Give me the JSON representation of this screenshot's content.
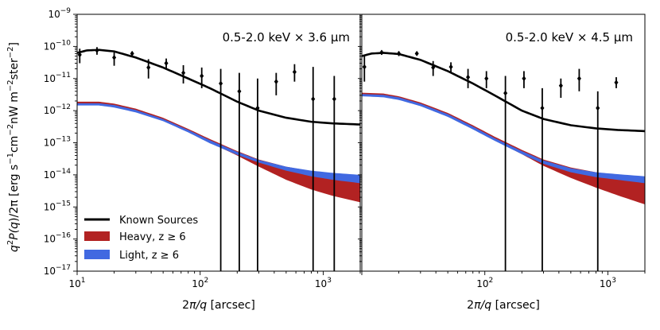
{
  "chart_data": {
    "type": "line",
    "ylabel": "q^2P(q)/2π [erg s^-1 cm^-2 nW m^-2 ster^-2]",
    "xlabel": "2π/q [arcsec]",
    "xscale": "log",
    "yscale": "log",
    "xlim": [
      10,
      2000
    ],
    "ylim": [
      1e-17,
      1e-09
    ],
    "x_ticks": [
      {
        "value": 10,
        "base": "10",
        "exp": "1"
      },
      {
        "value": 100,
        "base": "10",
        "exp": "2"
      },
      {
        "value": 1000,
        "base": "10",
        "exp": "3"
      }
    ],
    "y_ticks": [
      {
        "value": 1e-17,
        "base": "10",
        "exp": "−17"
      },
      {
        "value": 1e-16,
        "base": "10",
        "exp": "−16"
      },
      {
        "value": 1e-15,
        "base": "10",
        "exp": "−15"
      },
      {
        "value": 1e-14,
        "base": "10",
        "exp": "−14"
      },
      {
        "value": 1e-13,
        "base": "10",
        "exp": "−13"
      },
      {
        "value": 1e-12,
        "base": "10",
        "exp": "−12"
      },
      {
        "value": 1e-11,
        "base": "10",
        "exp": "−11"
      },
      {
        "value": 1e-10,
        "base": "10",
        "exp": "−10"
      },
      {
        "value": 1e-09,
        "base": "10",
        "exp": "−9"
      }
    ],
    "legend": {
      "placement": "lower-left",
      "entries": [
        {
          "label": "Known Sources",
          "kind": "line",
          "color": "#000000"
        },
        {
          "label": "Heavy, z ≥ 6",
          "kind": "patch",
          "color": "#b22222"
        },
        {
          "label": "Light, z ≥ 6",
          "kind": "patch",
          "color": "#4169e1"
        }
      ]
    },
    "panels": [
      {
        "title": "0.5-2.0 keV × 3.6 μm",
        "known_sources": {
          "x": [
            10,
            12,
            15,
            20,
            30,
            50,
            80,
            120,
            200,
            300,
            500,
            800,
            1200,
            2000
          ],
          "y": [
            6.3e-11,
            7.5e-11,
            7.8e-11,
            7e-11,
            4.5e-11,
            2.2e-11,
            1e-11,
            5e-12,
            1.9e-12,
            1e-12,
            6e-13,
            4.5e-13,
            4e-13,
            3.7e-13
          ]
        },
        "heavy": {
          "x": [
            10,
            15,
            20,
            30,
            50,
            80,
            120,
            200,
            300,
            500,
            800,
            1200,
            2000
          ],
          "upper": [
            1.9e-12,
            1.9e-12,
            1.65e-12,
            1.15e-12,
            6e-13,
            2.7e-13,
            1.3e-13,
            5.5e-14,
            3e-14,
            1.8e-14,
            1.3e-14,
            1.05e-14,
            8.5e-15
          ],
          "lower": [
            1.55e-12,
            1.55e-12,
            1.35e-12,
            9.5e-13,
            5e-13,
            2.2e-13,
            1e-13,
            4e-14,
            1.8e-14,
            7e-15,
            3.5e-15,
            2.2e-15,
            1.4e-15
          ]
        },
        "light": {
          "x": [
            10,
            15,
            20,
            30,
            50,
            80,
            120,
            200,
            300,
            500,
            800,
            1200,
            2000
          ],
          "upper": [
            1.7e-12,
            1.7e-12,
            1.5e-12,
            1.05e-12,
            5.5e-13,
            2.5e-13,
            1.2e-13,
            5.2e-14,
            2.9e-14,
            1.8e-14,
            1.35e-14,
            1.15e-14,
            1e-14
          ],
          "lower": [
            1.45e-12,
            1.45e-12,
            1.25e-12,
            8.8e-13,
            4.7e-13,
            2.1e-13,
            9.6e-14,
            4.2e-14,
            2.4e-14,
            1.35e-14,
            9e-15,
            7e-15,
            5.5e-15
          ]
        },
        "data_points": [
          {
            "x": 10.5,
            "y": 5.5e-11,
            "lo": 3e-11,
            "hi": 8.5e-11
          },
          {
            "x": 14.5,
            "y": 7.5e-11,
            "lo": 5.5e-11,
            "hi": 9.5e-11
          },
          {
            "x": 20,
            "y": 4.5e-11,
            "lo": 2.5e-11,
            "hi": 6.5e-11
          },
          {
            "x": 28,
            "y": 6e-11,
            "lo": 5e-11,
            "hi": 7e-11
          },
          {
            "x": 38,
            "y": 2.2e-11,
            "lo": 1e-11,
            "hi": 4e-11
          },
          {
            "x": 53,
            "y": 3e-11,
            "lo": 2e-11,
            "hi": 4.2e-11
          },
          {
            "x": 73,
            "y": 1.5e-11,
            "lo": 7e-12,
            "hi": 2.6e-11
          },
          {
            "x": 103,
            "y": 1.2e-11,
            "lo": 5e-12,
            "hi": 2.2e-11
          },
          {
            "x": 147,
            "y": 7e-12,
            "lo": 1e-17,
            "hi": 2e-11
          },
          {
            "x": 208,
            "y": 4e-12,
            "lo": 1e-17,
            "hi": 1.5e-11
          },
          {
            "x": 293,
            "y": 1.2e-12,
            "lo": 1e-17,
            "hi": 1e-11
          },
          {
            "x": 415,
            "y": 8e-12,
            "lo": 3e-12,
            "hi": 1.5e-11
          },
          {
            "x": 585,
            "y": 1.6e-11,
            "lo": 8e-12,
            "hi": 2.8e-11
          },
          {
            "x": 828,
            "y": 2.3e-12,
            "lo": 1e-17,
            "hi": 2.3e-11
          },
          {
            "x": 1230,
            "y": 2.3e-12,
            "lo": 1e-17,
            "hi": 1.2e-11
          }
        ]
      },
      {
        "title": "0.5-2.0 keV × 4.5 μm",
        "known_sources": {
          "x": [
            10,
            12,
            15,
            20,
            30,
            50,
            80,
            120,
            200,
            300,
            500,
            800,
            1200,
            2000
          ],
          "y": [
            5e-11,
            6e-11,
            6.3e-11,
            5.8e-11,
            3.8e-11,
            1.7e-11,
            7e-12,
            3e-12,
            1e-12,
            5.5e-13,
            3.5e-13,
            2.8e-13,
            2.5e-13,
            2.3e-13
          ]
        },
        "heavy": {
          "x": [
            10,
            15,
            20,
            30,
            50,
            80,
            120,
            200,
            300,
            500,
            800,
            1200,
            2000
          ],
          "upper": [
            3.6e-12,
            3.4e-12,
            2.8e-12,
            1.8e-12,
            8.5e-13,
            3.5e-13,
            1.55e-13,
            6e-14,
            3e-14,
            1.7e-14,
            1.2e-14,
            1e-14,
            8.5e-15
          ],
          "lower": [
            2.9e-12,
            2.7e-12,
            2.2e-12,
            1.4e-12,
            6.6e-13,
            2.7e-13,
            1.2e-13,
            4.4e-14,
            1.9e-14,
            8e-15,
            4e-15,
            2.3e-15,
            1.2e-15
          ]
        },
        "light": {
          "x": [
            10,
            15,
            20,
            30,
            50,
            80,
            120,
            200,
            300,
            500,
            800,
            1200,
            2000
          ],
          "upper": [
            3.3e-12,
            3.1e-12,
            2.6e-12,
            1.65e-12,
            7.8e-13,
            3.2e-13,
            1.4e-13,
            5.5e-14,
            2.8e-14,
            1.6e-14,
            1.2e-14,
            1.05e-14,
            9e-15
          ],
          "lower": [
            2.8e-12,
            2.6e-12,
            2.15e-12,
            1.38e-12,
            6.4e-13,
            2.6e-13,
            1.15e-13,
            4.4e-14,
            2.2e-14,
            1.2e-14,
            8.5e-15,
            7e-15,
            5.5e-15
          ]
        },
        "data_points": [
          {
            "x": 10.5,
            "y": 2.3e-11,
            "lo": 8e-12,
            "hi": 5e-11
          },
          {
            "x": 14.5,
            "y": 6.5e-11,
            "lo": 5.5e-11,
            "hi": 7.5e-11
          },
          {
            "x": 20,
            "y": 6e-11,
            "lo": 5e-11,
            "hi": 7e-11
          },
          {
            "x": 28,
            "y": 6e-11,
            "lo": 5.3e-11,
            "hi": 6.8e-11
          },
          {
            "x": 38,
            "y": 2.2e-11,
            "lo": 1.2e-11,
            "hi": 3.5e-11
          },
          {
            "x": 53,
            "y": 2.3e-11,
            "lo": 1.5e-11,
            "hi": 3.2e-11
          },
          {
            "x": 73,
            "y": 1.1e-11,
            "lo": 5e-12,
            "hi": 2e-11
          },
          {
            "x": 103,
            "y": 1e-11,
            "lo": 5e-12,
            "hi": 1.7e-11
          },
          {
            "x": 147,
            "y": 3.5e-12,
            "lo": 1e-17,
            "hi": 1.2e-11
          },
          {
            "x": 208,
            "y": 1e-11,
            "lo": 5e-12,
            "hi": 1.7e-11
          },
          {
            "x": 293,
            "y": 1.2e-12,
            "lo": 1e-17,
            "hi": 5e-12
          },
          {
            "x": 415,
            "y": 6e-12,
            "lo": 2.5e-12,
            "hi": 1e-11
          },
          {
            "x": 585,
            "y": 1e-11,
            "lo": 4e-12,
            "hi": 2e-11
          },
          {
            "x": 828,
            "y": 1.2e-12,
            "lo": 1e-17,
            "hi": 4e-12
          },
          {
            "x": 1170,
            "y": 7.5e-12,
            "lo": 5e-12,
            "hi": 1.1e-11
          }
        ]
      }
    ]
  }
}
